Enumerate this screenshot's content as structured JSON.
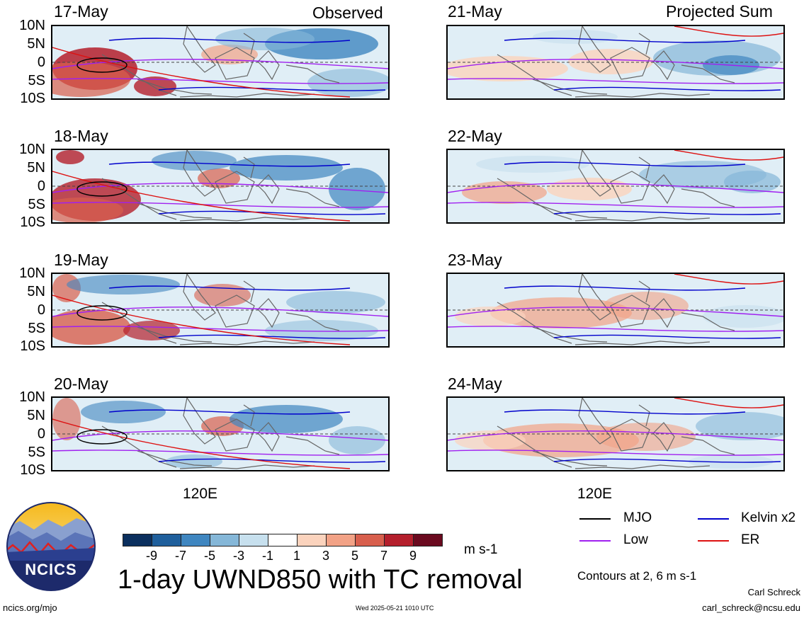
{
  "headers": {
    "observed": "Observed",
    "projected": "Projected Sum"
  },
  "lat_labels": [
    "10N",
    "5N",
    "0",
    "5S",
    "10S"
  ],
  "lon_label": "120E",
  "observed_panels": [
    {
      "date": "17-May"
    },
    {
      "date": "18-May"
    },
    {
      "date": "19-May"
    },
    {
      "date": "20-May"
    }
  ],
  "projected_panels": [
    {
      "date": "21-May"
    },
    {
      "date": "22-May"
    },
    {
      "date": "23-May"
    },
    {
      "date": "24-May"
    }
  ],
  "colorbar": {
    "labels": [
      "-9",
      "-7",
      "-5",
      "-3",
      "-1",
      "1",
      "3",
      "5",
      "7",
      "9"
    ],
    "colors": [
      "#0b2f5e",
      "#1f5f9c",
      "#3f86c0",
      "#85b7d8",
      "#c7e0ee",
      "#ffffff",
      "#fbd3bd",
      "#f2a286",
      "#d85f4d",
      "#b41f2c",
      "#6a0a1f"
    ],
    "units": "m s-1"
  },
  "title": "1-day UWND850 with TC removal",
  "legend": {
    "items": [
      {
        "label": "MJO",
        "color": "#000000"
      },
      {
        "label": "Kelvin x2",
        "color": "#0000cc"
      },
      {
        "label": "Low",
        "color": "#a020f0"
      },
      {
        "label": "ER",
        "color": "#dd1111"
      }
    ],
    "note": "Contours at 2, 6 m s-1"
  },
  "logo_text": "NCICS",
  "footer": {
    "left": "ncics.org/mjo",
    "center": "Wed 2025-05-21 1010 UTC",
    "author": "Carl Schreck",
    "email": "carl_schreck@ncsu.edu"
  }
}
